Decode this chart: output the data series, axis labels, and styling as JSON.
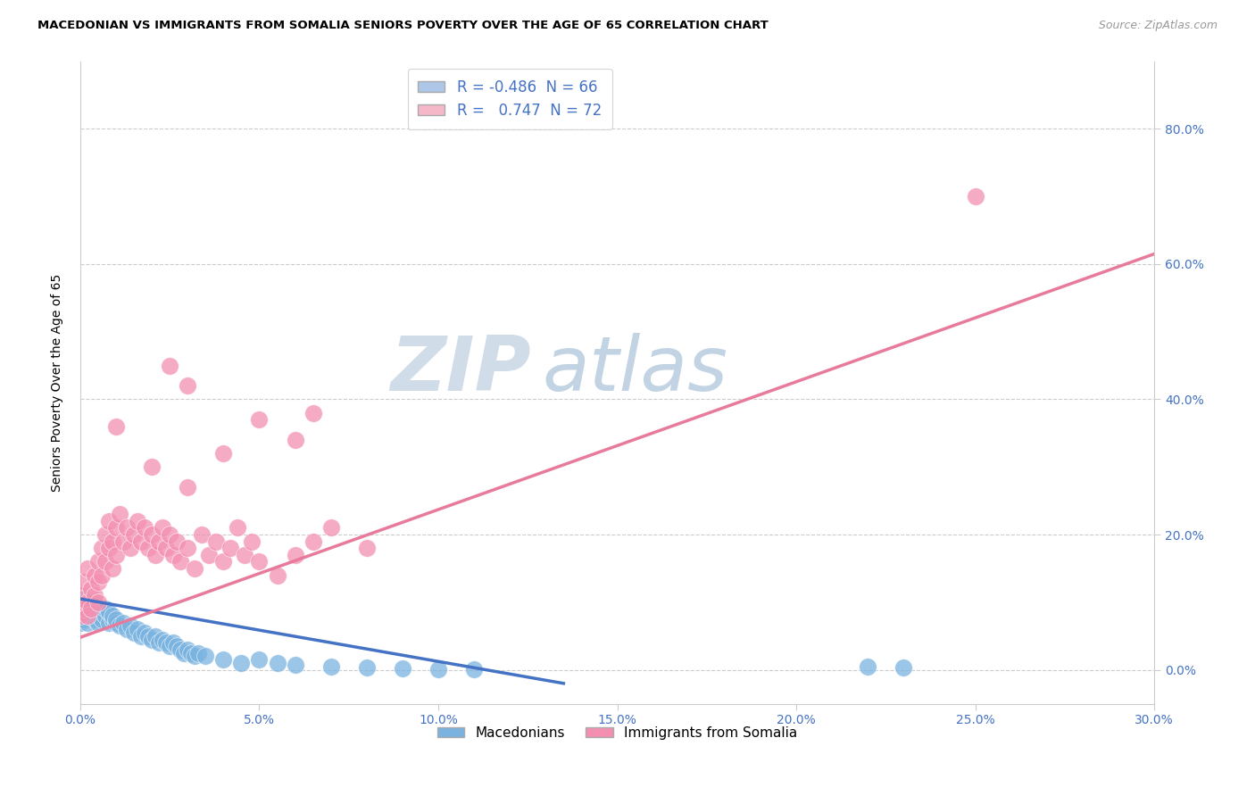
{
  "title": "MACEDONIAN VS IMMIGRANTS FROM SOMALIA SENIORS POVERTY OVER THE AGE OF 65 CORRELATION CHART",
  "source": "Source: ZipAtlas.com",
  "ylabel_label": "Seniors Poverty Over the Age of 65",
  "xlim": [
    0.0,
    0.3
  ],
  "ylim": [
    -0.05,
    0.9
  ],
  "y_tick_vals": [
    0.0,
    0.2,
    0.4,
    0.6,
    0.8
  ],
  "y_tick_labels": [
    "0.0%",
    "20.0%",
    "40.0%",
    "60.0%",
    "80.0%"
  ],
  "x_tick_vals": [
    0.0,
    0.05,
    0.1,
    0.15,
    0.2,
    0.25,
    0.3
  ],
  "x_tick_labels": [
    "0.0%",
    "5.0%",
    "10.0%",
    "15.0%",
    "20.0%",
    "25.0%",
    "30.0%"
  ],
  "macedonian_color": "#7ab3e0",
  "somalia_color": "#f48fb1",
  "trend_macedonian_color": "#4472C4",
  "trend_somalia_color": "#e87b9b",
  "legend_mac_color": "#aec6e8",
  "legend_som_color": "#f4b8c8",
  "tick_color": "#4472C4",
  "grid_color": "#cccccc",
  "watermark_zip_color": "#d0dce8",
  "watermark_atlas_color": "#b8cce0",
  "trend_macedonian_x0": 0.0,
  "trend_macedonian_y0": 0.105,
  "trend_macedonian_x1": 0.135,
  "trend_macedonian_y1": -0.02,
  "trend_somalia_x0": 0.0,
  "trend_somalia_y0": 0.048,
  "trend_somalia_x1": 0.3,
  "trend_somalia_y1": 0.615,
  "macedonian_scatter": [
    [
      0.0,
      0.08
    ],
    [
      0.0,
      0.095
    ],
    [
      0.0,
      0.11
    ],
    [
      0.0,
      0.07
    ],
    [
      0.0,
      0.085
    ],
    [
      0.001,
      0.09
    ],
    [
      0.001,
      0.1
    ],
    [
      0.001,
      0.075
    ],
    [
      0.001,
      0.095
    ],
    [
      0.002,
      0.085
    ],
    [
      0.002,
      0.1
    ],
    [
      0.002,
      0.07
    ],
    [
      0.003,
      0.09
    ],
    [
      0.003,
      0.08
    ],
    [
      0.003,
      0.095
    ],
    [
      0.004,
      0.085
    ],
    [
      0.004,
      0.075
    ],
    [
      0.004,
      0.1
    ],
    [
      0.005,
      0.08
    ],
    [
      0.005,
      0.09
    ],
    [
      0.005,
      0.07
    ],
    [
      0.006,
      0.085
    ],
    [
      0.006,
      0.075
    ],
    [
      0.007,
      0.08
    ],
    [
      0.007,
      0.09
    ],
    [
      0.008,
      0.07
    ],
    [
      0.008,
      0.085
    ],
    [
      0.009,
      0.075
    ],
    [
      0.009,
      0.08
    ],
    [
      0.01,
      0.07
    ],
    [
      0.01,
      0.075
    ],
    [
      0.011,
      0.065
    ],
    [
      0.012,
      0.07
    ],
    [
      0.013,
      0.06
    ],
    [
      0.014,
      0.065
    ],
    [
      0.015,
      0.055
    ],
    [
      0.016,
      0.06
    ],
    [
      0.017,
      0.05
    ],
    [
      0.018,
      0.055
    ],
    [
      0.019,
      0.05
    ],
    [
      0.02,
      0.045
    ],
    [
      0.021,
      0.05
    ],
    [
      0.022,
      0.04
    ],
    [
      0.023,
      0.045
    ],
    [
      0.024,
      0.04
    ],
    [
      0.025,
      0.035
    ],
    [
      0.026,
      0.04
    ],
    [
      0.027,
      0.035
    ],
    [
      0.028,
      0.03
    ],
    [
      0.029,
      0.025
    ],
    [
      0.03,
      0.03
    ],
    [
      0.031,
      0.025
    ],
    [
      0.032,
      0.02
    ],
    [
      0.033,
      0.025
    ],
    [
      0.035,
      0.02
    ],
    [
      0.04,
      0.015
    ],
    [
      0.045,
      0.01
    ],
    [
      0.05,
      0.015
    ],
    [
      0.055,
      0.01
    ],
    [
      0.06,
      0.008
    ],
    [
      0.07,
      0.005
    ],
    [
      0.08,
      0.003
    ],
    [
      0.09,
      0.002
    ],
    [
      0.1,
      0.001
    ],
    [
      0.11,
      0.001
    ],
    [
      0.22,
      0.005
    ],
    [
      0.23,
      0.004
    ]
  ],
  "somalia_scatter": [
    [
      0.0,
      0.08
    ],
    [
      0.0,
      0.11
    ],
    [
      0.001,
      0.09
    ],
    [
      0.001,
      0.13
    ],
    [
      0.002,
      0.1
    ],
    [
      0.002,
      0.15
    ],
    [
      0.002,
      0.08
    ],
    [
      0.003,
      0.12
    ],
    [
      0.003,
      0.09
    ],
    [
      0.004,
      0.14
    ],
    [
      0.004,
      0.11
    ],
    [
      0.005,
      0.16
    ],
    [
      0.005,
      0.13
    ],
    [
      0.005,
      0.1
    ],
    [
      0.006,
      0.18
    ],
    [
      0.006,
      0.14
    ],
    [
      0.007,
      0.2
    ],
    [
      0.007,
      0.16
    ],
    [
      0.008,
      0.22
    ],
    [
      0.008,
      0.18
    ],
    [
      0.009,
      0.19
    ],
    [
      0.009,
      0.15
    ],
    [
      0.01,
      0.21
    ],
    [
      0.01,
      0.17
    ],
    [
      0.011,
      0.23
    ],
    [
      0.012,
      0.19
    ],
    [
      0.013,
      0.21
    ],
    [
      0.014,
      0.18
    ],
    [
      0.015,
      0.2
    ],
    [
      0.016,
      0.22
    ],
    [
      0.017,
      0.19
    ],
    [
      0.018,
      0.21
    ],
    [
      0.019,
      0.18
    ],
    [
      0.02,
      0.2
    ],
    [
      0.021,
      0.17
    ],
    [
      0.022,
      0.19
    ],
    [
      0.023,
      0.21
    ],
    [
      0.024,
      0.18
    ],
    [
      0.025,
      0.2
    ],
    [
      0.026,
      0.17
    ],
    [
      0.027,
      0.19
    ],
    [
      0.028,
      0.16
    ],
    [
      0.03,
      0.18
    ],
    [
      0.032,
      0.15
    ],
    [
      0.034,
      0.2
    ],
    [
      0.036,
      0.17
    ],
    [
      0.038,
      0.19
    ],
    [
      0.04,
      0.16
    ],
    [
      0.042,
      0.18
    ],
    [
      0.044,
      0.21
    ],
    [
      0.046,
      0.17
    ],
    [
      0.048,
      0.19
    ],
    [
      0.05,
      0.16
    ],
    [
      0.055,
      0.14
    ],
    [
      0.06,
      0.17
    ],
    [
      0.065,
      0.19
    ],
    [
      0.07,
      0.21
    ],
    [
      0.08,
      0.18
    ],
    [
      0.01,
      0.36
    ],
    [
      0.02,
      0.3
    ],
    [
      0.03,
      0.27
    ],
    [
      0.04,
      0.32
    ],
    [
      0.05,
      0.37
    ],
    [
      0.06,
      0.34
    ],
    [
      0.065,
      0.38
    ],
    [
      0.025,
      0.45
    ],
    [
      0.03,
      0.42
    ],
    [
      0.25,
      0.7
    ]
  ]
}
